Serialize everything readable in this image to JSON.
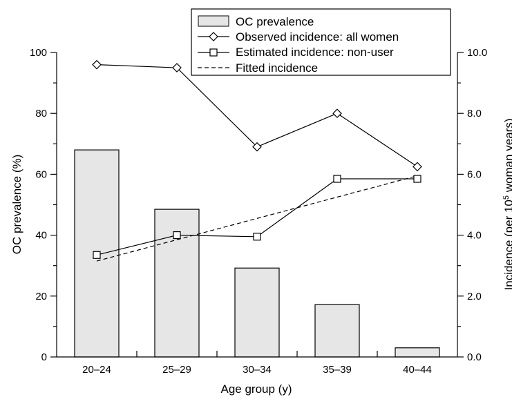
{
  "chart_data": {
    "type": "bar+line",
    "categories": [
      "20–24",
      "25–29",
      "30–34",
      "35–39",
      "40–44"
    ],
    "xlabel": "Age group (y)",
    "ylabel_left": "OC prevalence (%)",
    "ylabel_right_prefix": "Incidence (per 10",
    "ylabel_right_sup": "5",
    "ylabel_right_suffix": " woman years)",
    "ylim_left": [
      0,
      100
    ],
    "ylim_right": [
      0,
      10
    ],
    "left_ticks": [
      0,
      20,
      40,
      60,
      80,
      100
    ],
    "right_ticks": [
      "0.0",
      "2.0",
      "4.0",
      "6.0",
      "8.0",
      "10.0"
    ],
    "bars": {
      "name": "OC prevalence",
      "values": [
        68,
        48.5,
        29.2,
        17.2,
        3.0
      ],
      "color": "#e6e6e6"
    },
    "series": [
      {
        "name": "Observed incidence: all women",
        "marker": "diamond",
        "axis": "right",
        "values": [
          9.6,
          9.5,
          6.9,
          8.0,
          6.25
        ]
      },
      {
        "name": "Estimated incidence: non-user",
        "marker": "square",
        "axis": "right",
        "values": [
          3.35,
          4.0,
          3.95,
          5.85,
          5.85
        ]
      },
      {
        "name": "Fitted incidence",
        "style": "dashed",
        "axis": "right",
        "values": [
          3.15,
          null,
          null,
          null,
          5.95
        ]
      }
    ],
    "legend_position": "top-right",
    "grid": false
  }
}
